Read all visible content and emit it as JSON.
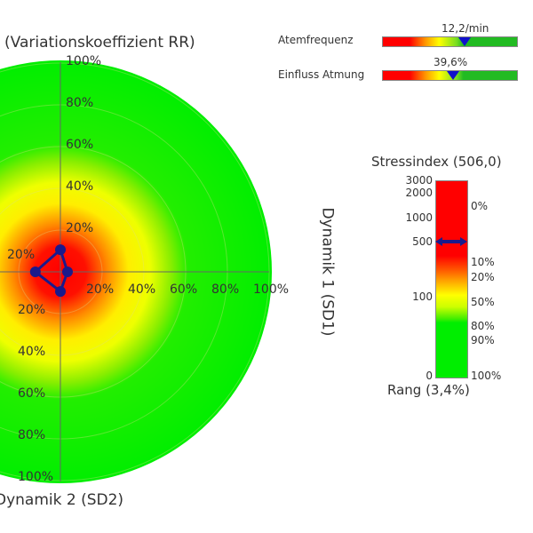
{
  "chart_data": {
    "type": "radar",
    "title_top": "(Variationskoeffizient RR)",
    "axis_right_label": "Dynamik 1 (SD1)",
    "axis_bottom_label": "Dynamik 2 (SD2)",
    "tick_labels": [
      "20%",
      "40%",
      "60%",
      "80%",
      "100%"
    ],
    "points": [
      {
        "axis": "top",
        "value": 10.6
      },
      {
        "axis": "right",
        "value": 3.4
      },
      {
        "axis": "bottom",
        "value": 9.4
      },
      {
        "axis": "left",
        "value": 12
      }
    ],
    "colors": {
      "center": "#ff0000",
      "mid": "#ffff00",
      "outer": "#00ee00",
      "marker": "#1a1a8c"
    }
  },
  "indicators": [
    {
      "label": "Atemfrequenz",
      "value_text": "12,2/min",
      "fraction": 0.61
    },
    {
      "label": "Einfluss Atmung",
      "value_text": "39,6%",
      "fraction": 0.52
    }
  ],
  "stress": {
    "title": "Stressindex (506,0)",
    "footer": "Rang (3,4%)",
    "value": 506,
    "left_ticks": [
      {
        "v": 3000,
        "l": "3000"
      },
      {
        "v": 2000,
        "l": "2000"
      },
      {
        "v": 1000,
        "l": "1000"
      },
      {
        "v": 500,
        "l": "500"
      },
      {
        "v": 100,
        "l": "100"
      },
      {
        "v": 0,
        "l": "0"
      }
    ],
    "right_ticks": [
      "0%",
      "10%",
      "20%",
      "50%",
      "80%",
      "90%",
      "100%"
    ]
  }
}
